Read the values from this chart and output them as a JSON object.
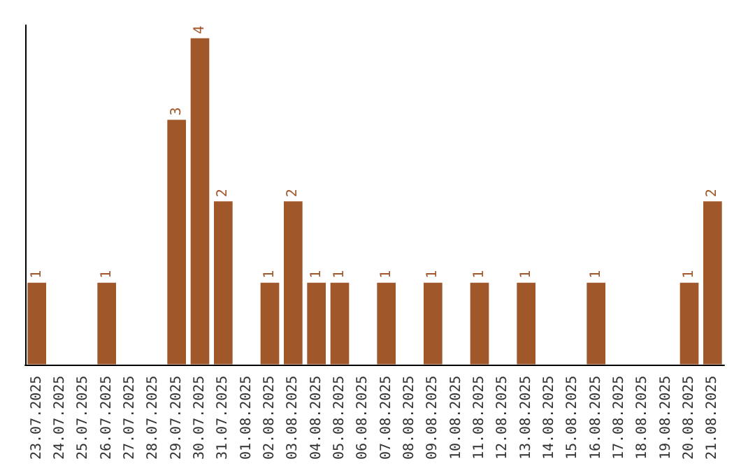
{
  "chart_data": {
    "type": "bar",
    "categories": [
      "23.07.2025",
      "24.07.2025",
      "25.07.2025",
      "26.07.2025",
      "27.07.2025",
      "28.07.2025",
      "29.07.2025",
      "30.07.2025",
      "31.07.2025",
      "01.08.2025",
      "02.08.2025",
      "03.08.2025",
      "04.08.2025",
      "05.08.2025",
      "06.08.2025",
      "07.08.2025",
      "08.08.2025",
      "09.08.2025",
      "10.08.2025",
      "11.08.2025",
      "12.08.2025",
      "13.08.2025",
      "14.08.2025",
      "15.08.2025",
      "16.08.2025",
      "17.08.2025",
      "18.08.2025",
      "19.08.2025",
      "20.08.2025",
      "21.08.2025"
    ],
    "values": [
      1,
      0,
      0,
      1,
      0,
      0,
      3,
      4,
      2,
      0,
      1,
      2,
      1,
      1,
      0,
      1,
      0,
      1,
      0,
      1,
      0,
      1,
      0,
      0,
      1,
      0,
      0,
      0,
      1,
      2
    ],
    "value_labels": [
      "1",
      null,
      null,
      "1",
      null,
      null,
      "3",
      "4",
      "2",
      null,
      "1",
      "2",
      "1",
      "1",
      null,
      "1",
      null,
      "1",
      null,
      "1",
      null,
      "1",
      null,
      null,
      "1",
      null,
      null,
      null,
      "1",
      "2"
    ],
    "color": "#a0572a"
  }
}
